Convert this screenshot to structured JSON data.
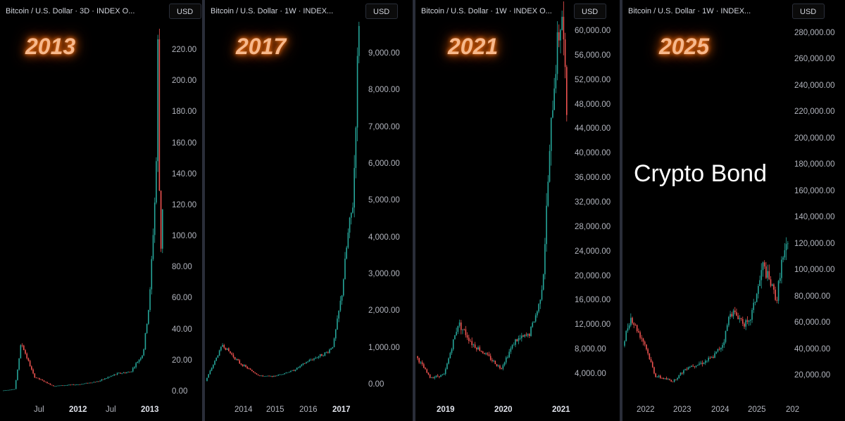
{
  "panels": [
    {
      "title": "Bitcoin / U.S. Dollar · 3D · INDEX  O...",
      "currency": "USD",
      "highlight_year": "2013",
      "price_ticks": [
        "220.00",
        "200.00",
        "180.00",
        "160.00",
        "140.00",
        "120.00",
        "100.00",
        "80.00",
        "60.00",
        "40.00",
        "20.00",
        "0.00"
      ],
      "time_ticks": [
        {
          "label": "Jul",
          "bold": false
        },
        {
          "label": "2012",
          "bold": true
        },
        {
          "label": "Jul",
          "bold": false
        },
        {
          "label": "2013",
          "bold": true
        }
      ]
    },
    {
      "title": "Bitcoin / U.S. Dollar · 1W · INDEX...",
      "currency": "USD",
      "highlight_year": "2017",
      "price_ticks": [
        "9,000.00",
        "8,000.00",
        "7,000.00",
        "6,000.00",
        "5,000.00",
        "4,000.00",
        "3,000.00",
        "2,000.00",
        "1,000.00",
        "0.00"
      ],
      "time_ticks": [
        {
          "label": "2014",
          "bold": false
        },
        {
          "label": "2015",
          "bold": false
        },
        {
          "label": "2016",
          "bold": false
        },
        {
          "label": "2017",
          "bold": true
        }
      ]
    },
    {
      "title": "Bitcoin / U.S. Dollar · 1W · INDEX  O...",
      "currency": "USD",
      "highlight_year": "2021",
      "price_ticks": [
        "60,000.00",
        "56,000.00",
        "52,000.00",
        "48,000.00",
        "44,000.00",
        "40,000.00",
        "36,000.00",
        "32,000.00",
        "28,000.00",
        "24,000.00",
        "20,000.00",
        "16,000.00",
        "12,000.00",
        "8,000.00",
        "4,000.00"
      ],
      "time_ticks": [
        {
          "label": "2019",
          "bold": true
        },
        {
          "label": "2020",
          "bold": true
        },
        {
          "label": "2021",
          "bold": true
        }
      ]
    },
    {
      "title": "Bitcoin / U.S. Dollar · 1W · INDEX...",
      "currency": "USD",
      "highlight_year": "2025",
      "annotation": "Crypto Bond",
      "price_ticks": [
        "280,000.00",
        "260,000.00",
        "240,000.00",
        "220,000.00",
        "200,000.00",
        "180,000.00",
        "160,000.00",
        "140,000.00",
        "120,000.00",
        "100,000.00",
        "80,000.00",
        "60,000.00",
        "40,000.00",
        "20,000.00"
      ],
      "time_ticks": [
        {
          "label": "2022",
          "bold": false
        },
        {
          "label": "2023",
          "bold": false
        },
        {
          "label": "2024",
          "bold": false
        },
        {
          "label": "2025",
          "bold": false
        },
        {
          "label": "202",
          "bold": false
        }
      ]
    }
  ],
  "colors": {
    "up": "#26a69a",
    "down": "#ef5350",
    "glow": "#ff7a1a"
  },
  "chart_data": [
    {
      "type": "line",
      "title": "Bitcoin / U.S. Dollar · 3D · INDEX",
      "ylim": [
        0,
        230
      ],
      "x": [
        "2011-04",
        "2011-06",
        "2011-07",
        "2011-09",
        "2011-12",
        "2012-04",
        "2012-07",
        "2012-10",
        "2012-12",
        "2013-02",
        "2013-03",
        "2013-04",
        "2013-04-10",
        "2013-04-20",
        "2013-05"
      ],
      "values": [
        1,
        2,
        32,
        10,
        4,
        5,
        7,
        12,
        13,
        25,
        60,
        140,
        230,
        80,
        120
      ]
    },
    {
      "type": "line",
      "title": "Bitcoin / U.S. Dollar · 1W · INDEX",
      "ylim": [
        0,
        10000
      ],
      "x": [
        "2013-06",
        "2013-12",
        "2014-06",
        "2015-01",
        "2015-06",
        "2016-01",
        "2016-06",
        "2017-01",
        "2017-03",
        "2017-06",
        "2017-08",
        "2017-10",
        "2017-11",
        "2017-12"
      ],
      "values": [
        110,
        1100,
        600,
        250,
        240,
        400,
        650,
        900,
        1100,
        2500,
        4000,
        5000,
        7500,
        10000
      ]
    },
    {
      "type": "line",
      "title": "Bitcoin / U.S. Dollar · 1W · INDEX",
      "ylim": [
        2000,
        62000
      ],
      "x": [
        "2018-09",
        "2018-12",
        "2019-03",
        "2019-06",
        "2019-09",
        "2019-12",
        "2020-03",
        "2020-06",
        "2020-09",
        "2020-11",
        "2020-12",
        "2021-01",
        "2021-02",
        "2021-03",
        "2021-04",
        "2021-05"
      ],
      "values": [
        7000,
        3500,
        4000,
        12500,
        9000,
        7200,
        5000,
        9500,
        10500,
        15000,
        20000,
        35000,
        48000,
        58000,
        63000,
        47000
      ]
    },
    {
      "type": "line",
      "title": "Bitcoin / U.S. Dollar · 1W · INDEX",
      "ylim": [
        10000,
        290000
      ],
      "x": [
        "2021-09",
        "2021-11",
        "2022-03",
        "2022-06",
        "2022-11",
        "2023-03",
        "2023-07",
        "2023-10",
        "2024-01",
        "2024-03",
        "2024-08",
        "2024-11",
        "2024-12",
        "2025-04",
        "2025-05",
        "2025-07"
      ],
      "values": [
        43000,
        65000,
        45000,
        20000,
        16000,
        27000,
        30000,
        34000,
        45000,
        70000,
        58000,
        90000,
        104000,
        78000,
        104000,
        118000
      ]
    }
  ]
}
